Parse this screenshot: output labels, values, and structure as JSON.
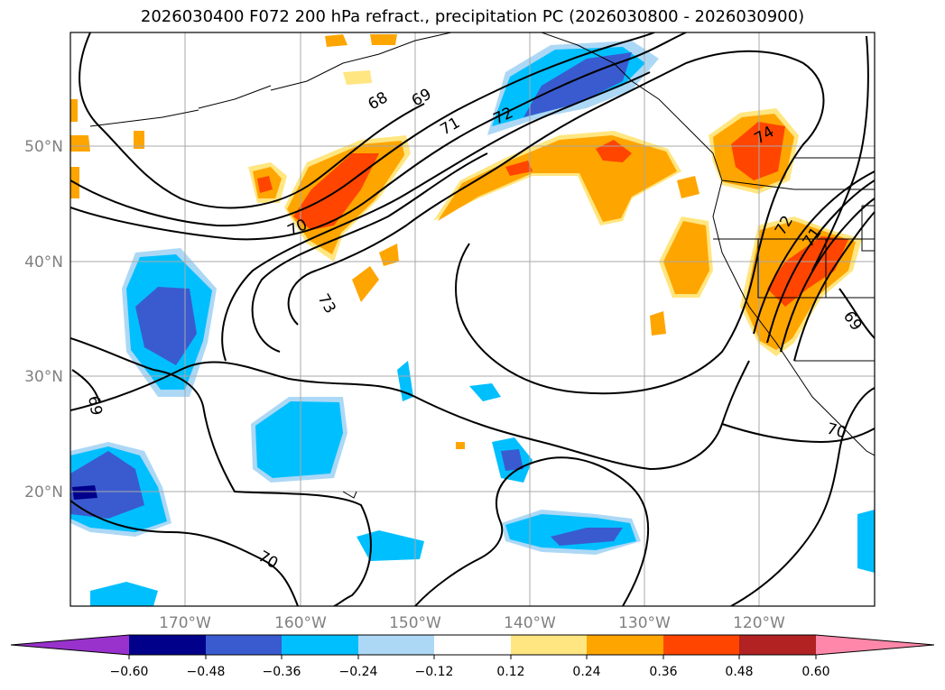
{
  "title": "2026030400 F072 200 hPa refract., precipitation PC (2026030800 - 2026030900)",
  "lat_labels": [
    "50°N",
    "40°N",
    "30°N",
    "20°N"
  ],
  "lon_labels": [
    "170°W",
    "160°W",
    "150°W",
    "140°W",
    "130°W",
    "120°W"
  ],
  "contour_labels": [
    "68",
    "69",
    "71",
    "72",
    "70",
    "73",
    "74",
    "72",
    "71",
    "69",
    "70",
    "70",
    "69"
  ],
  "colorbar": {
    "ticks": [
      "−0.60",
      "−0.48",
      "−0.36",
      "−0.24",
      "−0.12",
      "0.12",
      "0.24",
      "0.36",
      "0.48",
      "0.60"
    ],
    "colors": [
      "#9932cc",
      "#00008b",
      "#3a5bcf",
      "#00bfff",
      "#add8f5",
      "#ffffff",
      "#ffe680",
      "#ffa500",
      "#ff4500",
      "#b22222",
      "#ff88aa"
    ]
  }
}
